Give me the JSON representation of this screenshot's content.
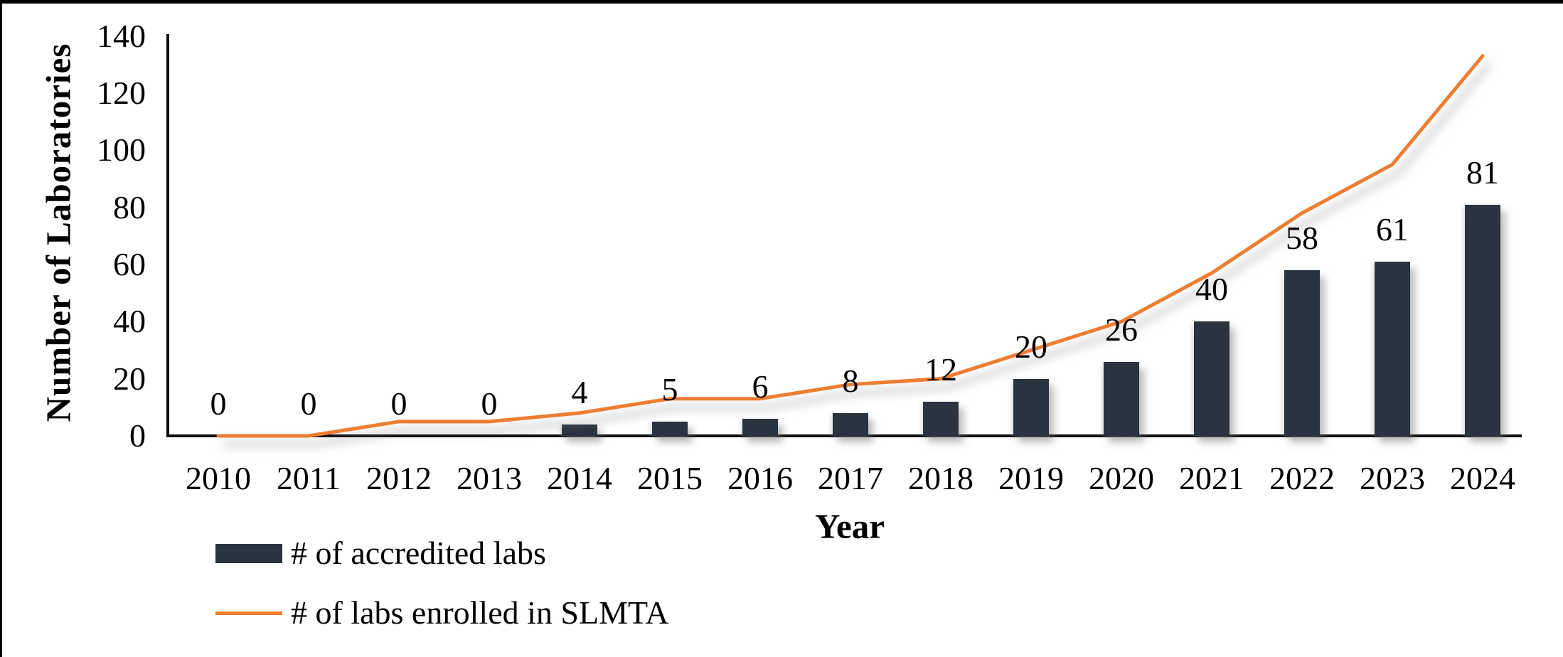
{
  "figure": {
    "y_axis_title": "Number of Laboratories",
    "x_axis_title": "Year",
    "legend": {
      "bar_label": "# of accredited labs",
      "line_label": "# of labs enrolled in SLMTA"
    },
    "colors": {
      "bar": "#2a3340",
      "line": "#ED7D31",
      "axis": "#0d0d0d",
      "background": "#ffffff",
      "frame_border": "#000000",
      "label_text": "#000000"
    }
  },
  "chart_data": {
    "type": "bar",
    "subtype": "bar-with-line-overlay",
    "title": "",
    "xlabel": "Year",
    "ylabel": "Number of Laboratories",
    "categories": [
      "2010",
      "2011",
      "2012",
      "2013",
      "2014",
      "2015",
      "2016",
      "2017",
      "2018",
      "2019",
      "2020",
      "2021",
      "2022",
      "2023",
      "2024"
    ],
    "series": [
      {
        "name": "# of accredited labs",
        "type": "bar",
        "color": "#2a3340",
        "values": [
          0,
          0,
          0,
          0,
          4,
          5,
          6,
          8,
          12,
          20,
          26,
          40,
          58,
          61,
          81
        ],
        "data_labels": [
          0,
          0,
          0,
          0,
          4,
          5,
          6,
          8,
          12,
          20,
          26,
          40,
          58,
          61,
          81
        ]
      },
      {
        "name": "# of labs enrolled in SLMTA",
        "type": "line",
        "color": "#ED7D31",
        "values": [
          0,
          0,
          5,
          5,
          8,
          13,
          13,
          18,
          20,
          30,
          40,
          57,
          78,
          95,
          133
        ],
        "data_labels": null
      }
    ],
    "yticks": [
      0,
      20,
      40,
      60,
      80,
      100,
      120,
      140
    ],
    "ylim": [
      0,
      140
    ],
    "grid": false,
    "tick_marks": false,
    "legend_position": "bottom-left"
  }
}
